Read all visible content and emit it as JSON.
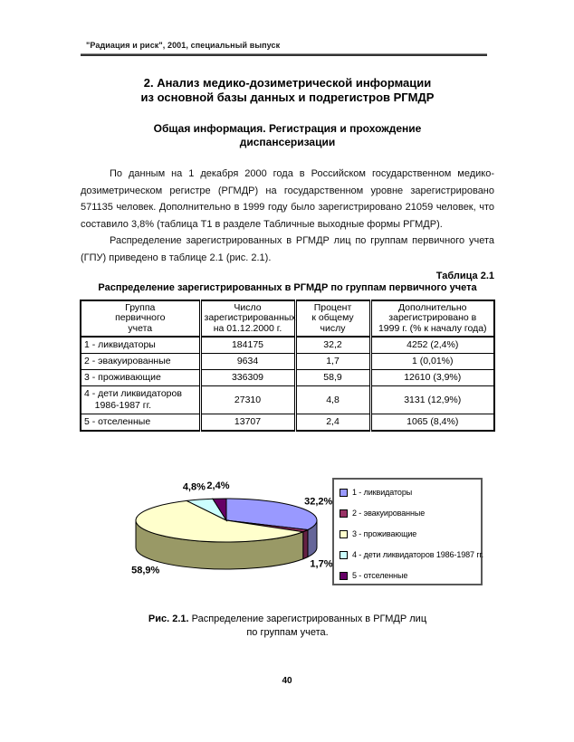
{
  "page": {
    "running_head": "\"Радиация и риск\", 2001, специальный выпуск",
    "page_number": "40"
  },
  "title": "2. Анализ медико-дозиметрической информации\nиз основной базы данных и подрегистров РГМДР",
  "subtitle": "Общая информация. Регистрация и прохождение\nдиспансеризации",
  "paragraphs": [
    "По данным на 1 декабря 2000 года в Российском государственном медико-дозиметрическом регистре (РГМДР) на государственном уровне зарегистрировано 571135 человек. Дополнительно в 1999 году было зарегистрировано 21059 человек, что составило 3,8% (таблица Т1 в разделе Табличные выходные формы РГМДР).",
    "Распределение зарегистрированных в РГМДР лиц по группам первичного учета (ГПУ) приведено в таблице 2.1 (рис. 2.1)."
  ],
  "table": {
    "label": "Таблица 2.1",
    "title": "Распределение зарегистрированных в РГМДР по группам первичного учета",
    "headers": [
      "Группа\nпервичного\nучета",
      "Число\nзарегистрированных\nна 01.12.2000 г.",
      "Процент\nк общему\nчислу",
      "Дополнительно\nзарегистрировано в\n1999 г. (% к началу года)"
    ],
    "rows": [
      [
        "1 - ликвидаторы",
        "184175",
        "32,2",
        "4252 (2,4%)"
      ],
      [
        "2 - эвакуированные",
        "9634",
        "1,7",
        "1 (0,01%)"
      ],
      [
        "3 - проживающие",
        "336309",
        "58,9",
        "12610 (3,9%)"
      ],
      [
        "4 - дети ликвидаторов\n    1986-1987 гг.",
        "27310",
        "4,8",
        "3131 (12,9%)"
      ],
      [
        "5 - отселенные",
        "13707",
        "2,4",
        "1065 (8,4%)"
      ]
    ]
  },
  "chart_data": {
    "type": "pie",
    "style": "3d",
    "title": "",
    "categories": [
      "1 - ликвидаторы",
      "2 - эвакуированные",
      "3 - проживающие",
      "4 - дети ликвидаторов 1986-1987 гг.",
      "5 - отселенные"
    ],
    "values": [
      32.2,
      1.7,
      58.9,
      4.8,
      2.4
    ],
    "value_labels": [
      "32,2%",
      "1,7%",
      "58,9%",
      "4,8%",
      "2,4%"
    ],
    "colors": [
      "#9999FF",
      "#993366",
      "#FFFFCC",
      "#CCFFFF",
      "#660066"
    ],
    "side_colors": [
      "#666699",
      "#662244",
      "#999966",
      "#8FB3B3",
      "#440044"
    ],
    "start_angle_deg": 0,
    "direction": "clockwise",
    "legend_position": "right"
  },
  "caption": {
    "label": "Рис. 2.1.",
    "line1": "Распределение зарегистрированных в РГМДР лиц",
    "line2": "по группам учета."
  }
}
